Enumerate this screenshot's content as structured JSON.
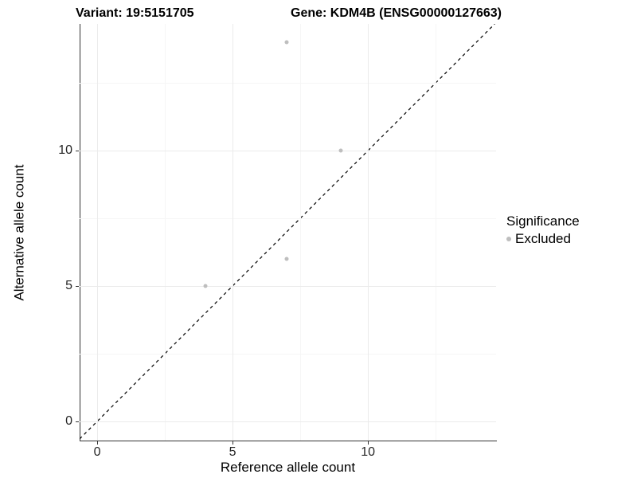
{
  "title": {
    "variant_label": "Variant: 19:5151705",
    "gene_label": "Gene: KDM4B (ENSG00000127663)"
  },
  "chart_data": {
    "type": "scatter",
    "title": "Variant: 19:5151705 — Gene: KDM4B (ENSG00000127663)",
    "xlabel": "Reference allele count",
    "ylabel": "Alternative allele count",
    "xlim": [
      -0.65,
      14.73
    ],
    "ylim": [
      -0.71,
      14.68
    ],
    "x_ticks": [
      0,
      5,
      10
    ],
    "y_ticks": [
      0,
      5,
      10
    ],
    "x_minor_ticks": [
      2.5,
      7.5,
      12.5
    ],
    "y_minor_ticks": [
      2.5,
      7.5,
      12.5
    ],
    "grid": true,
    "identity_line": {
      "style": "dashed",
      "color": "#000000",
      "from": [
        -0.65,
        -0.65
      ],
      "to": [
        14.68,
        14.68
      ]
    },
    "series": [
      {
        "name": "Excluded",
        "color": "#bebebe",
        "points": [
          [
            7,
            14
          ],
          [
            9,
            10
          ],
          [
            7,
            6
          ],
          [
            4,
            5
          ]
        ]
      }
    ],
    "legend": {
      "position": "right",
      "title": "Significance",
      "items": [
        {
          "label": "Excluded",
          "color": "#bebebe"
        }
      ]
    }
  },
  "colors": {
    "background": "#ffffff",
    "axis_line": "#333333",
    "grid_major": "#ebebeb",
    "grid_minor": "#f6f6f6",
    "point": "#bebebe",
    "text": "#262626"
  }
}
